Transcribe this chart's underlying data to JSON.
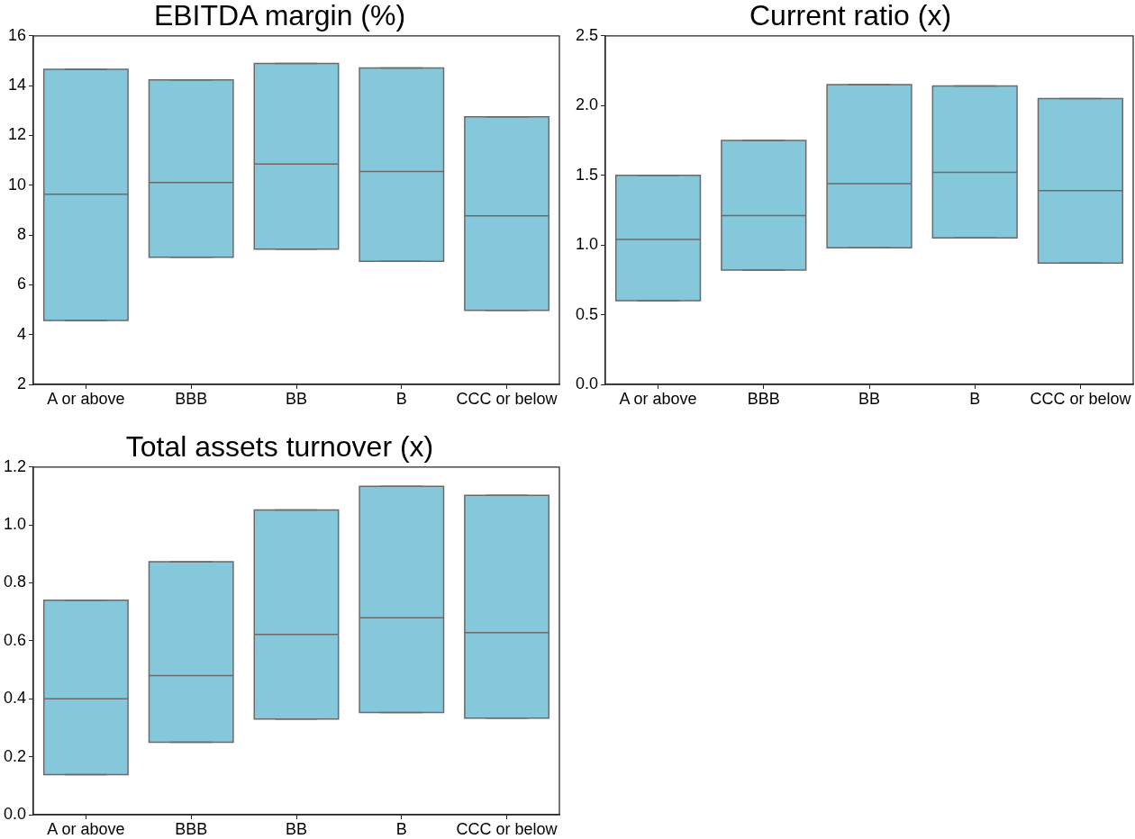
{
  "chart_data": [
    {
      "type": "box",
      "title": "EBITDA margin (%)",
      "categories": [
        "A or above",
        "BBB",
        "BB",
        "B",
        "CCC or below"
      ],
      "color": "#86c8db",
      "boxes": [
        {
          "low": 4.57,
          "q1": 4.57,
          "median": 9.64,
          "q3": 14.65,
          "high": 14.65
        },
        {
          "low": 7.11,
          "q1": 7.11,
          "median": 10.11,
          "q3": 14.23,
          "high": 14.23
        },
        {
          "low": 7.43,
          "q1": 7.43,
          "median": 10.85,
          "q3": 14.89,
          "high": 14.89
        },
        {
          "low": 6.94,
          "q1": 6.94,
          "median": 10.55,
          "q3": 14.71,
          "high": 14.71
        },
        {
          "low": 4.97,
          "q1": 4.97,
          "median": 8.77,
          "q3": 12.75,
          "high": 12.75
        }
      ],
      "ylim": [
        2,
        16
      ],
      "yticks": [
        2,
        4,
        6,
        8,
        10,
        12,
        14,
        16
      ]
    },
    {
      "type": "box",
      "title": "Current ratio (x)",
      "categories": [
        "A or above",
        "BBB",
        "BB",
        "B",
        "CCC or below"
      ],
      "color": "#86c8db",
      "boxes": [
        {
          "low": 0.6,
          "q1": 0.6,
          "median": 1.04,
          "q3": 1.5,
          "high": 1.5
        },
        {
          "low": 0.82,
          "q1": 0.82,
          "median": 1.21,
          "q3": 1.75,
          "high": 1.75
        },
        {
          "low": 0.98,
          "q1": 0.98,
          "median": 1.44,
          "q3": 2.15,
          "high": 2.15
        },
        {
          "low": 1.05,
          "q1": 1.05,
          "median": 1.52,
          "q3": 2.14,
          "high": 2.14
        },
        {
          "low": 0.87,
          "q1": 0.87,
          "median": 1.39,
          "q3": 2.05,
          "high": 2.05
        }
      ],
      "ylim": [
        0,
        2.5
      ],
      "yticks": [
        {
          "value": 0,
          "label": "0.0"
        },
        {
          "value": 0.5,
          "label": "0.5"
        },
        {
          "value": 1,
          "label": "1.0"
        },
        {
          "value": 1.5,
          "label": "1.5"
        },
        {
          "value": 2,
          "label": "2.0"
        },
        {
          "value": 2.5,
          "label": "2.5"
        }
      ]
    },
    {
      "type": "box",
      "title": "Total assets turnover (x)",
      "categories": [
        "A or above",
        "BBB",
        "BB",
        "B",
        "CCC or below"
      ],
      "color": "#86c8db",
      "boxes": [
        {
          "low": 0.138,
          "q1": 0.138,
          "median": 0.4,
          "q3": 0.74,
          "high": 0.74
        },
        {
          "low": 0.25,
          "q1": 0.25,
          "median": 0.48,
          "q3": 0.873,
          "high": 0.873
        },
        {
          "low": 0.33,
          "q1": 0.33,
          "median": 0.622,
          "q3": 1.052,
          "high": 1.052
        },
        {
          "low": 0.353,
          "q1": 0.353,
          "median": 0.68,
          "q3": 1.133,
          "high": 1.133
        },
        {
          "low": 0.333,
          "q1": 0.333,
          "median": 0.628,
          "q3": 1.102,
          "high": 1.102
        }
      ],
      "ylim": [
        0,
        1.2
      ],
      "yticks": [
        {
          "value": 0,
          "label": "0.0"
        },
        {
          "value": 0.2,
          "label": "0.2"
        },
        {
          "value": 0.4,
          "label": "0.4"
        },
        {
          "value": 0.6,
          "label": "0.6"
        },
        {
          "value": 0.8,
          "label": "0.8"
        },
        {
          "value": 1,
          "label": "1.0"
        },
        {
          "value": 1.2,
          "label": "1.2"
        }
      ]
    }
  ]
}
